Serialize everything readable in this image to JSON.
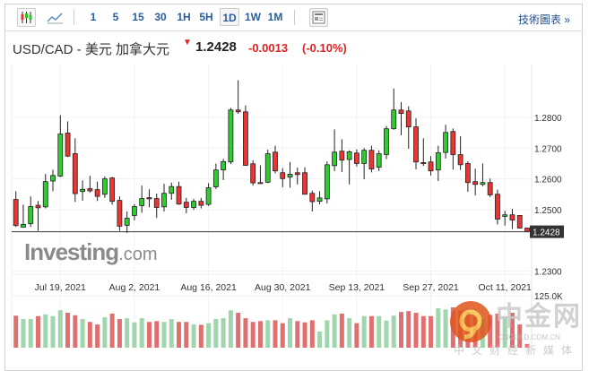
{
  "toolbar": {
    "chart_types": [
      {
        "name": "candlestick-icon",
        "active": true
      },
      {
        "name": "line-chart-icon",
        "active": false
      }
    ],
    "intervals": [
      "1",
      "5",
      "15",
      "30",
      "1H",
      "5H",
      "1D",
      "1W",
      "1M"
    ],
    "active_interval": "1D",
    "news_icon": "news-icon",
    "tech_chart_link": "技術圖表 »"
  },
  "header": {
    "title": "USD/CAD - 美元 加拿大元",
    "direction_icon": "down-arrow-icon",
    "price": "1.2428",
    "change": "-0.0013",
    "change_pct": "(-0.10%)"
  },
  "colors": {
    "up": "#2ecc2e",
    "down": "#ee3333",
    "vol_up": "#9fd6ad",
    "vol_down": "#e07070",
    "link": "#2a5d9f",
    "negative": "#e02020"
  },
  "logo": "Investing.com",
  "logo_parts": {
    "main": "Investing",
    "suffix": ".com"
  },
  "watermark": {
    "name": "中金网",
    "domain": "CNGOLD.COM.CN",
    "tagline": "中文财经新媒体"
  },
  "chart_data": {
    "type": "candlestick",
    "symbol": "USD/CAD",
    "interval": "1D",
    "y_ticks": [
      "1.2800",
      "1.2700",
      "1.2600",
      "1.2500",
      "1.2300"
    ],
    "ylim": [
      1.228,
      1.292
    ],
    "current_price_label": "1.2428",
    "current_price": 1.2428,
    "x_labels": [
      "Jul 19, 2021",
      "Aug 2, 2021",
      "Aug 16, 2021",
      "Aug 30, 2021",
      "Sep 13, 2021",
      "Sep 27, 2021",
      "Oct 11, 2021"
    ],
    "x_label_candle_index": [
      6,
      16,
      26,
      36,
      46,
      56,
      66
    ],
    "volume_label": "125.0K",
    "volume_max_k": 125,
    "ohlc": [
      [
        1.2533,
        1.256,
        1.2444,
        1.2448
      ],
      [
        1.2443,
        1.2516,
        1.2441,
        1.2452
      ],
      [
        1.2454,
        1.2543,
        1.2444,
        1.251
      ],
      [
        1.2514,
        1.2528,
        1.2431,
        1.2506
      ],
      [
        1.2509,
        1.2616,
        1.2504,
        1.2591
      ],
      [
        1.2593,
        1.263,
        1.256,
        1.2611
      ],
      [
        1.2609,
        1.2807,
        1.2606,
        1.2746
      ],
      [
        1.2749,
        1.2787,
        1.2671,
        1.2674
      ],
      [
        1.2682,
        1.2732,
        1.2525,
        1.2552
      ],
      [
        1.2559,
        1.2595,
        1.2529,
        1.2566
      ],
      [
        1.2568,
        1.261,
        1.2555,
        1.2561
      ],
      [
        1.2565,
        1.2591,
        1.2528,
        1.2543
      ],
      [
        1.255,
        1.2608,
        1.2538,
        1.26
      ],
      [
        1.2603,
        1.2606,
        1.2516,
        1.2527
      ],
      [
        1.253,
        1.2543,
        1.2431,
        1.2446
      ],
      [
        1.2449,
        1.2494,
        1.2424,
        1.2472
      ],
      [
        1.2481,
        1.2518,
        1.2465,
        1.251
      ],
      [
        1.2513,
        1.2578,
        1.249,
        1.2536
      ],
      [
        1.2539,
        1.2566,
        1.2508,
        1.2535
      ],
      [
        1.2536,
        1.2552,
        1.2473,
        1.2507
      ],
      [
        1.2509,
        1.2584,
        1.2494,
        1.2553
      ],
      [
        1.2553,
        1.2588,
        1.2532,
        1.2575
      ],
      [
        1.2575,
        1.2591,
        1.2516,
        1.2518
      ],
      [
        1.2524,
        1.2538,
        1.2488,
        1.2507
      ],
      [
        1.2507,
        1.2535,
        1.2499,
        1.2527
      ],
      [
        1.2527,
        1.2538,
        1.2504,
        1.2514
      ],
      [
        1.2517,
        1.2586,
        1.2512,
        1.2571
      ],
      [
        1.2574,
        1.265,
        1.2567,
        1.2629
      ],
      [
        1.2629,
        1.2665,
        1.2596,
        1.2656
      ],
      [
        1.2655,
        1.2831,
        1.2648,
        1.2824
      ],
      [
        1.2824,
        1.2921,
        1.2812,
        1.2818
      ],
      [
        1.2818,
        1.2839,
        1.2642,
        1.2644
      ],
      [
        1.2649,
        1.2661,
        1.2578,
        1.2587
      ],
      [
        1.2588,
        1.2644,
        1.2586,
        1.2587
      ],
      [
        1.2589,
        1.2695,
        1.2586,
        1.2682
      ],
      [
        1.2687,
        1.2708,
        1.2618,
        1.2626
      ],
      [
        1.262,
        1.2635,
        1.2573,
        1.2601
      ],
      [
        1.2606,
        1.2655,
        1.2571,
        1.2615
      ],
      [
        1.262,
        1.2637,
        1.2582,
        1.2614
      ],
      [
        1.262,
        1.2638,
        1.2549,
        1.255
      ],
      [
        1.2553,
        1.2562,
        1.2494,
        1.2526
      ],
      [
        1.2527,
        1.256,
        1.2517,
        1.2538
      ],
      [
        1.2535,
        1.2657,
        1.252,
        1.2646
      ],
      [
        1.2643,
        1.2761,
        1.2625,
        1.2687
      ],
      [
        1.269,
        1.2729,
        1.2622,
        1.2661
      ],
      [
        1.2663,
        1.2693,
        1.2582,
        1.2688
      ],
      [
        1.2684,
        1.2696,
        1.264,
        1.265
      ],
      [
        1.265,
        1.27,
        1.2599,
        1.2693
      ],
      [
        1.2693,
        1.2708,
        1.2621,
        1.2632
      ],
      [
        1.2638,
        1.2693,
        1.2625,
        1.2682
      ],
      [
        1.2679,
        1.2772,
        1.2664,
        1.2763
      ],
      [
        1.2763,
        1.2894,
        1.276,
        1.2824
      ],
      [
        1.2824,
        1.285,
        1.2742,
        1.2813
      ],
      [
        1.2821,
        1.2836,
        1.2698,
        1.2769
      ],
      [
        1.2769,
        1.2797,
        1.2631,
        1.2655
      ],
      [
        1.2653,
        1.2732,
        1.2642,
        1.2652
      ],
      [
        1.2655,
        1.2674,
        1.2611,
        1.2626
      ],
      [
        1.2629,
        1.2708,
        1.2593,
        1.2685
      ],
      [
        1.2686,
        1.2776,
        1.2666,
        1.2751
      ],
      [
        1.2754,
        1.2764,
        1.263,
        1.2679
      ],
      [
        1.2679,
        1.2739,
        1.2629,
        1.2646
      ],
      [
        1.265,
        1.2657,
        1.2558,
        1.2588
      ],
      [
        1.2591,
        1.2633,
        1.2546,
        1.2582
      ],
      [
        1.2582,
        1.265,
        1.2576,
        1.2588
      ],
      [
        1.2588,
        1.2601,
        1.2541,
        1.2548
      ],
      [
        1.255,
        1.2565,
        1.2452,
        1.2469
      ],
      [
        1.2478,
        1.2496,
        1.2448,
        1.2483
      ],
      [
        1.2483,
        1.2502,
        1.2437,
        1.2466
      ],
      [
        1.2481,
        1.2482,
        1.2439,
        1.244
      ],
      [
        1.244,
        1.2441,
        1.2426,
        1.2428
      ]
    ],
    "volume_k": [
      77,
      69,
      69,
      76,
      80,
      76,
      90,
      84,
      78,
      69,
      62,
      56,
      73,
      82,
      69,
      71,
      61,
      71,
      62,
      64,
      62,
      69,
      62,
      62,
      56,
      55,
      59,
      69,
      71,
      90,
      84,
      71,
      62,
      64,
      66,
      66,
      59,
      71,
      64,
      61,
      66,
      39,
      66,
      80,
      82,
      71,
      59,
      76,
      76,
      76,
      65,
      77,
      86,
      88,
      84,
      76,
      76,
      95,
      92,
      97,
      89,
      86,
      75,
      69,
      79,
      82,
      75,
      84,
      56,
      9
    ]
  }
}
